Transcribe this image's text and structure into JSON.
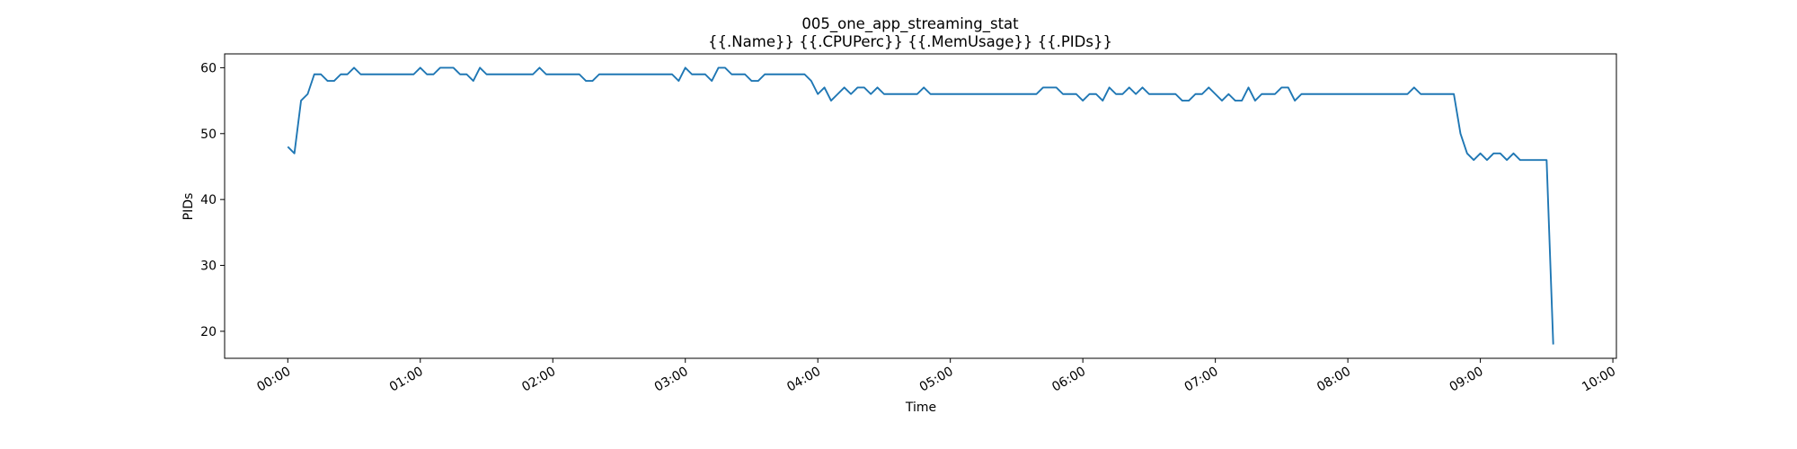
{
  "chart_data": {
    "type": "line",
    "title": "005_one_app_streaming_stat\n{{.Name}} {{.CPUPerc}} {{.MemUsage}}  {{.PIDs}}",
    "xlabel": "Time",
    "ylabel": "PIDs",
    "x": [
      0,
      3,
      6,
      9,
      12,
      15,
      18,
      21,
      24,
      27,
      30,
      33,
      36,
      39,
      42,
      45,
      48,
      51,
      54,
      57,
      60,
      63,
      66,
      69,
      72,
      75,
      78,
      81,
      84,
      87,
      90,
      93,
      96,
      99,
      102,
      105,
      108,
      111,
      114,
      117,
      120,
      123,
      126,
      129,
      132,
      135,
      138,
      141,
      144,
      147,
      150,
      153,
      156,
      159,
      162,
      165,
      168,
      171,
      174,
      177,
      180,
      183,
      186,
      189,
      192,
      195,
      198,
      201,
      204,
      207,
      210,
      213,
      216,
      219,
      222,
      225,
      228,
      231,
      234,
      237,
      240,
      243,
      246,
      249,
      252,
      255,
      258,
      261,
      264,
      267,
      270,
      273,
      276,
      279,
      282,
      285,
      288,
      291,
      294,
      297,
      300,
      303,
      306,
      309,
      312,
      315,
      318,
      321,
      324,
      327,
      330,
      333,
      336,
      339,
      342,
      345,
      348,
      351,
      354,
      357,
      360,
      363,
      366,
      369,
      372,
      375,
      378,
      381,
      384,
      387,
      390,
      393,
      396,
      399,
      402,
      405,
      408,
      411,
      414,
      417,
      420,
      423,
      426,
      429,
      432,
      435,
      438,
      441,
      444,
      447,
      450,
      453,
      456,
      459,
      462,
      465,
      468,
      471,
      474,
      477,
      480,
      483,
      486,
      489,
      492,
      495,
      498,
      501,
      504,
      507,
      510,
      513,
      516,
      519,
      522,
      525,
      528,
      531,
      534,
      537,
      540,
      543,
      546,
      549,
      552,
      555,
      558,
      561,
      564,
      567,
      570,
      573
    ],
    "series": [
      {
        "name": "PIDs",
        "color": "#1f77b4",
        "values": [
          48,
          47,
          55,
          56,
          59,
          59,
          58,
          58,
          59,
          59,
          60,
          59,
          59,
          59,
          59,
          59,
          59,
          59,
          59,
          59,
          60,
          59,
          59,
          60,
          60,
          60,
          59,
          59,
          58,
          60,
          59,
          59,
          59,
          59,
          59,
          59,
          59,
          59,
          60,
          59,
          59,
          59,
          59,
          59,
          59,
          58,
          58,
          59,
          59,
          59,
          59,
          59,
          59,
          59,
          59,
          59,
          59,
          59,
          59,
          58,
          60,
          59,
          59,
          59,
          58,
          60,
          60,
          59,
          59,
          59,
          58,
          58,
          59,
          59,
          59,
          59,
          59,
          59,
          59,
          58,
          56,
          57,
          55,
          56,
          57,
          56,
          57,
          57,
          56,
          57,
          56,
          56,
          56,
          56,
          56,
          56,
          57,
          56,
          56,
          56,
          56,
          56,
          56,
          56,
          56,
          56,
          56,
          56,
          56,
          56,
          56,
          56,
          56,
          56,
          57,
          57,
          57,
          56,
          56,
          56,
          55,
          56,
          56,
          55,
          57,
          56,
          56,
          57,
          56,
          57,
          56,
          56,
          56,
          56,
          56,
          55,
          55,
          56,
          56,
          57,
          56,
          55,
          56,
          55,
          55,
          57,
          55,
          56,
          56,
          56,
          57,
          57,
          55,
          56,
          56,
          56,
          56,
          56,
          56,
          56,
          56,
          56,
          56,
          56,
          56,
          56,
          56,
          56,
          56,
          56,
          57,
          56,
          56,
          56,
          56,
          56,
          56,
          50,
          47,
          46,
          47,
          46,
          47,
          47,
          46,
          47,
          46,
          46,
          46,
          46,
          46,
          18
        ]
      }
    ],
    "xlim": [
      -28.6,
      601.6
    ],
    "xticks": [
      {
        "value": 0,
        "label": "00:00"
      },
      {
        "value": 60,
        "label": "01:00"
      },
      {
        "value": 120,
        "label": "02:00"
      },
      {
        "value": 180,
        "label": "03:00"
      },
      {
        "value": 240,
        "label": "04:00"
      },
      {
        "value": 300,
        "label": "05:00"
      },
      {
        "value": 360,
        "label": "06:00"
      },
      {
        "value": 420,
        "label": "07:00"
      },
      {
        "value": 480,
        "label": "08:00"
      },
      {
        "value": 540,
        "label": "09:00"
      },
      {
        "value": 600,
        "label": "10:00"
      }
    ],
    "ylim": [
      15.9,
      62.1
    ],
    "yticks": [
      20,
      30,
      40,
      50,
      60
    ],
    "grid": false
  }
}
